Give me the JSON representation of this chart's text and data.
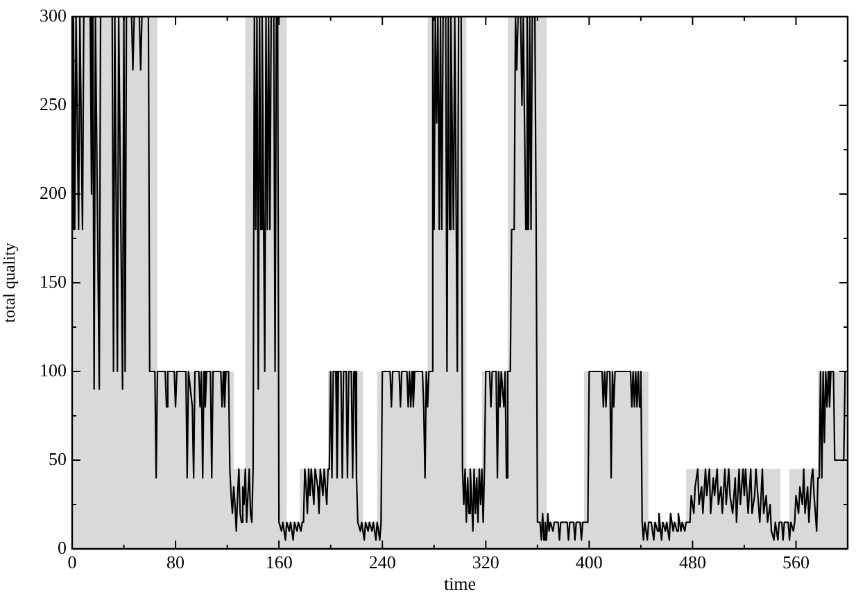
{
  "chart_data": {
    "type": "line",
    "xlabel": "time",
    "ylabel": "total quality",
    "xlim": [
      0,
      600
    ],
    "ylim": [
      0,
      300
    ],
    "xticks": [
      0,
      {
        "value": 40,
        "label": null
      },
      80,
      {
        "value": 120,
        "label": null
      },
      160,
      {
        "value": 200,
        "label": null
      },
      240,
      {
        "value": 280,
        "label": null
      },
      320,
      {
        "value": 360,
        "label": null
      },
      400,
      {
        "value": 440,
        "label": null
      },
      480,
      {
        "value": 520,
        "label": null
      },
      560
    ],
    "yticks": [
      0,
      {
        "value": 25,
        "label": null
      },
      50,
      {
        "value": 75,
        "label": null
      },
      100,
      {
        "value": 125,
        "label": null
      },
      150,
      {
        "value": 175,
        "label": null
      },
      200,
      {
        "value": 225,
        "label": null
      },
      250,
      {
        "value": 275,
        "label": null
      },
      300
    ],
    "series": [
      {
        "type": "area",
        "color": "#d9d9d9",
        "x": [
          0,
          66,
          66,
          125,
          125,
          134,
          134,
          166,
          166,
          176,
          176,
          198,
          198,
          225,
          225,
          236,
          236,
          275,
          275,
          305,
          305,
          317,
          317,
          337,
          337,
          367,
          367,
          396,
          396,
          446,
          446,
          475,
          475,
          548,
          548,
          555,
          555,
          577,
          577,
          600
        ],
        "values": [
          300,
          300,
          100,
          100,
          45,
          45,
          300,
          300,
          15,
          15,
          45,
          45,
          100,
          100,
          15,
          15,
          100,
          100,
          300,
          300,
          45,
          45,
          100,
          100,
          300,
          300,
          15,
          15,
          100,
          100,
          15,
          15,
          45,
          45,
          15,
          15,
          45,
          45,
          100,
          100
        ]
      },
      {
        "type": "line",
        "color": "#000000",
        "x": [
          0,
          1,
          2,
          3,
          5,
          6,
          8,
          9,
          14,
          15,
          16,
          17,
          18,
          21,
          22,
          31,
          32,
          33,
          35,
          36,
          39,
          40,
          41,
          42,
          46,
          47,
          48,
          52,
          53,
          54,
          59,
          60,
          64,
          65,
          66,
          72,
          73,
          74,
          79,
          80,
          81,
          88,
          89,
          90,
          93,
          94,
          95,
          98,
          99,
          100,
          101,
          102,
          103,
          104,
          107,
          108,
          109,
          115,
          116,
          117,
          118,
          119,
          121,
          122,
          123,
          124,
          125,
          126,
          127,
          128,
          129,
          130,
          131,
          132,
          133,
          134,
          135,
          136,
          137,
          138,
          139,
          140,
          141,
          142,
          143,
          144,
          145,
          146,
          147,
          148,
          149,
          150,
          151,
          152,
          153,
          154,
          156,
          157,
          158,
          159,
          160,
          162,
          163,
          165,
          166,
          168,
          169,
          171,
          172,
          174,
          175,
          177,
          178,
          179,
          180,
          181,
          182,
          183,
          184,
          185,
          187,
          188,
          190,
          191,
          192,
          194,
          195,
          197,
          198,
          199,
          200,
          201,
          202,
          204,
          205,
          206,
          208,
          209,
          210,
          212,
          213,
          214,
          216,
          217,
          218,
          219,
          220,
          221,
          223,
          224,
          226,
          227,
          229,
          230,
          232,
          233,
          235,
          236,
          238,
          239,
          240,
          246,
          247,
          248,
          253,
          254,
          255,
          259,
          260,
          261,
          262,
          263,
          264,
          265,
          271,
          272,
          273,
          274,
          275,
          276,
          278,
          279,
          280,
          281,
          282,
          283,
          284,
          285,
          286,
          287,
          289,
          290,
          291,
          292,
          293,
          295,
          296,
          298,
          299,
          301,
          302,
          303,
          304,
          305,
          306,
          307,
          308,
          309,
          310,
          311,
          312,
          313,
          314,
          315,
          316,
          317,
          318,
          319,
          320,
          323,
          324,
          325,
          328,
          329,
          330,
          331,
          332,
          334,
          335,
          336,
          337,
          339,
          340,
          342,
          343,
          344,
          345,
          347,
          348,
          349,
          351,
          352,
          353,
          354,
          355,
          356,
          358,
          359,
          360,
          362,
          363,
          364,
          365,
          366,
          367,
          368,
          369,
          370,
          372,
          373,
          376,
          377,
          378,
          383,
          384,
          385,
          388,
          389,
          390,
          393,
          394,
          395,
          399,
          400,
          410,
          411,
          412,
          413,
          414,
          416,
          417,
          418,
          419,
          420,
          432,
          433,
          434,
          435,
          436,
          437,
          438,
          439,
          440,
          441,
          442,
          443,
          445,
          446,
          448,
          450,
          451,
          453,
          454,
          456,
          457,
          459,
          460,
          462,
          463,
          465,
          466,
          468,
          469,
          471,
          472,
          474,
          475,
          478,
          479,
          481,
          482,
          484,
          485,
          487,
          488,
          490,
          491,
          493,
          494,
          496,
          497,
          499,
          500,
          502,
          503,
          505,
          506,
          508,
          509,
          511,
          513,
          514,
          516,
          517,
          519,
          520,
          521,
          523,
          525,
          526,
          528,
          529,
          531,
          532,
          534,
          535,
          537,
          538,
          540,
          541,
          543,
          544,
          546,
          547,
          549,
          550,
          551,
          554,
          555,
          556,
          558,
          559,
          560,
          562,
          563,
          565,
          566,
          567,
          569,
          570,
          572,
          573,
          574,
          576,
          577,
          578,
          579,
          580,
          581,
          582,
          583,
          584,
          585,
          586,
          587,
          589,
          590,
          597,
          598,
          600
        ],
        "values": [
          180,
          300,
          180,
          300,
          180,
          300,
          180,
          300,
          300,
          200,
          300,
          90,
          300,
          90,
          300,
          300,
          100,
          300,
          100,
          300,
          90,
          300,
          100,
          300,
          300,
          270,
          300,
          300,
          270,
          300,
          300,
          100,
          100,
          40,
          100,
          100,
          80,
          100,
          100,
          80,
          100,
          100,
          40,
          100,
          80,
          40,
          100,
          100,
          80,
          100,
          40,
          100,
          80,
          100,
          100,
          40,
          100,
          100,
          80,
          100,
          80,
          100,
          100,
          45,
          30,
          20,
          35,
          25,
          10,
          30,
          45,
          20,
          15,
          35,
          25,
          45,
          15,
          30,
          45,
          20,
          15,
          45,
          300,
          180,
          300,
          90,
          300,
          180,
          300,
          200,
          100,
          300,
          180,
          300,
          180,
          300,
          300,
          100,
          300,
          300,
          15,
          10,
          15,
          5,
          15,
          10,
          15,
          5,
          15,
          10,
          15,
          10,
          15,
          15,
          45,
          35,
          20,
          45,
          30,
          45,
          25,
          45,
          35,
          20,
          45,
          30,
          45,
          25,
          45,
          45,
          100,
          40,
          100,
          100,
          40,
          100,
          100,
          40,
          100,
          100,
          40,
          100,
          100,
          40,
          100,
          100,
          40,
          15,
          10,
          15,
          5,
          15,
          10,
          15,
          10,
          15,
          5,
          15,
          5,
          15,
          100,
          100,
          80,
          100,
          100,
          80,
          100,
          100,
          80,
          100,
          80,
          100,
          80,
          100,
          100,
          80,
          40,
          100,
          80,
          100,
          100,
          300,
          180,
          300,
          240,
          300,
          180,
          300,
          180,
          300,
          300,
          100,
          300,
          180,
          300,
          180,
          300,
          100,
          300,
          300,
          45,
          25,
          45,
          15,
          40,
          20,
          45,
          30,
          10,
          45,
          20,
          40,
          15,
          45,
          25,
          45,
          15,
          45,
          100,
          100,
          80,
          100,
          100,
          40,
          100,
          80,
          100,
          80,
          100,
          40,
          100,
          100,
          180,
          180,
          300,
          270,
          300,
          300,
          250,
          300,
          180,
          300,
          180,
          300,
          180,
          300,
          300,
          180,
          15,
          15,
          5,
          20,
          5,
          15,
          5,
          20,
          10,
          15,
          10,
          15,
          15,
          5,
          15,
          15,
          5,
          15,
          15,
          5,
          15,
          15,
          5,
          15,
          15,
          100,
          100,
          80,
          100,
          80,
          100,
          100,
          40,
          100,
          80,
          100,
          100,
          80,
          100,
          80,
          100,
          80,
          100,
          80,
          100,
          15,
          5,
          15,
          5,
          15,
          15,
          5,
          15,
          10,
          20,
          5,
          15,
          10,
          15,
          5,
          20,
          10,
          15,
          10,
          20,
          10,
          15,
          10,
          15,
          15,
          30,
          20,
          35,
          45,
          25,
          35,
          20,
          45,
          30,
          45,
          20,
          40,
          30,
          45,
          25,
          35,
          20,
          45,
          25,
          45,
          30,
          20,
          40,
          15,
          45,
          25,
          45,
          30,
          45,
          20,
          45,
          20,
          30,
          45,
          25,
          15,
          45,
          20,
          30,
          15,
          25,
          10,
          5,
          15,
          5,
          15,
          15,
          5,
          15,
          15,
          5,
          15,
          10,
          15,
          30,
          20,
          35,
          25,
          45,
          20,
          35,
          15,
          40,
          45,
          30,
          10,
          40,
          40,
          100,
          40,
          100,
          60,
          100,
          80,
          100,
          80,
          100,
          100,
          50,
          50,
          100,
          100
        ]
      }
    ]
  }
}
